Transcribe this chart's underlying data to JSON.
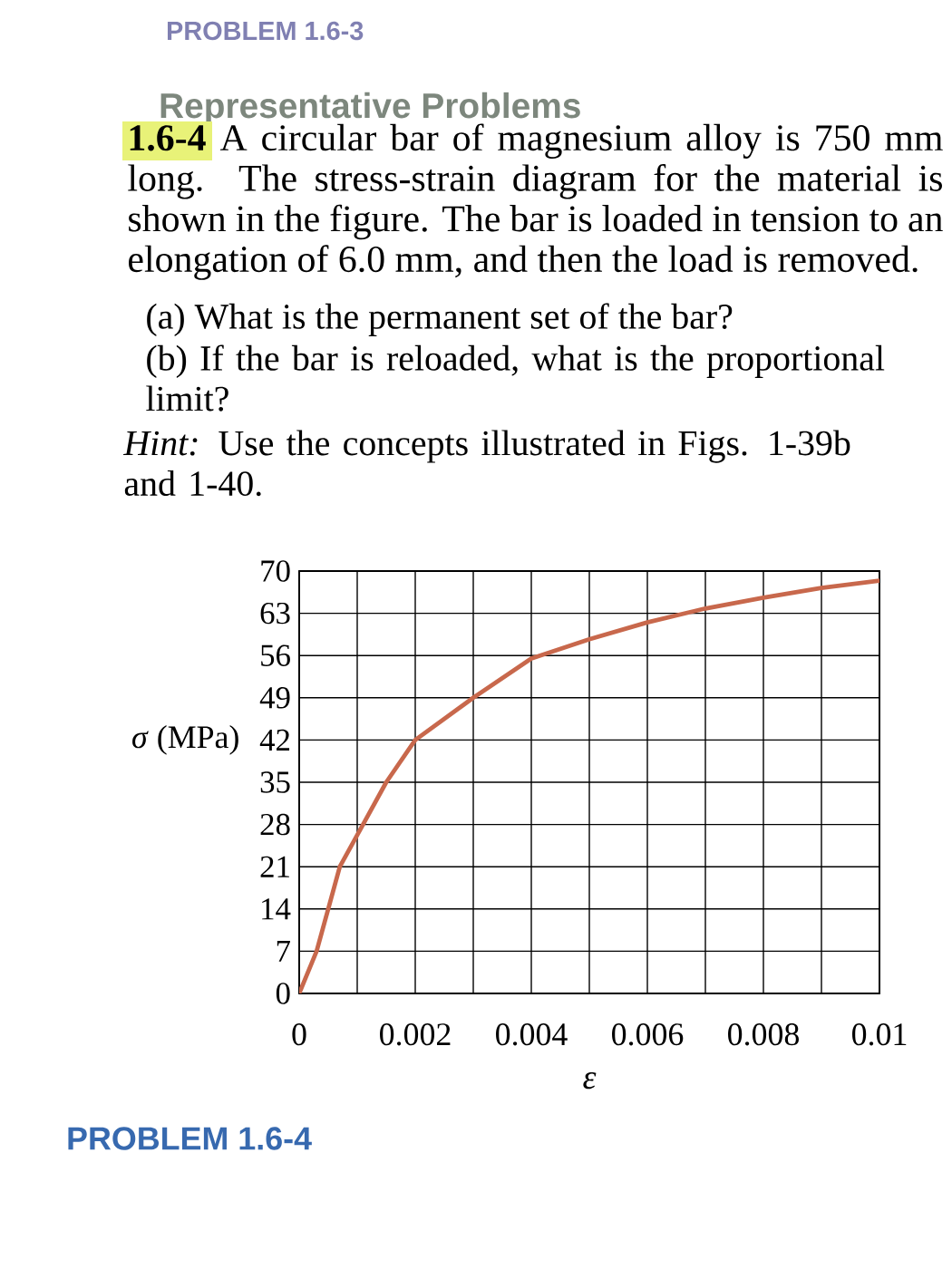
{
  "chart_data": {
    "type": "line",
    "annotations": [
      "PROBLEM 1.6-3",
      "Representative Problems",
      "**1.6-4** A circular bar of magnesium alloy is 750 mm long. The stress-strain diagram for the material is shown in the figure. The bar is loaded in tension to an elongation of 6.0 mm, and then the load is removed.",
      "(a) What is the permanent set of the bar?",
      "(b) If the bar is reloaded, what is the proportional limit?",
      "*Hint:* Use the concepts illustrated in Figs. 1-39b and 1-40.",
      "PROBLEM 1.6-4"
    ],
    "xlabel": "ε",
    "ylabel": "*σ* (MPa)",
    "x": [
      0,
      0.0003,
      0.0005,
      0.0007,
      0.0011,
      0.0015,
      0.002,
      0.003,
      0.004,
      0.005,
      0.006,
      0.007,
      0.008,
      0.009,
      0.01
    ],
    "values": [
      0,
      7,
      14,
      21,
      28,
      35,
      42,
      49,
      55.5,
      58.7,
      61.5,
      63.8,
      65.6,
      67.2,
      68.4
    ],
    "color": "#c8684c",
    "xlim": [
      0,
      0.01
    ],
    "ylim": [
      0,
      70
    ],
    "xticks": [
      0,
      {
        "value": 0.001,
        "label": null
      },
      0.002,
      {
        "value": 0.003,
        "label": null
      },
      0.004,
      {
        "value": 0.005,
        "label": null
      },
      0.006,
      {
        "value": 0.007,
        "label": null
      },
      0.008,
      {
        "value": 0.009,
        "label": null
      },
      0.01
    ],
    "yticks": [
      0,
      7,
      14,
      21,
      28,
      35,
      42,
      49,
      56,
      63,
      70
    ],
    "grid": true
  }
}
